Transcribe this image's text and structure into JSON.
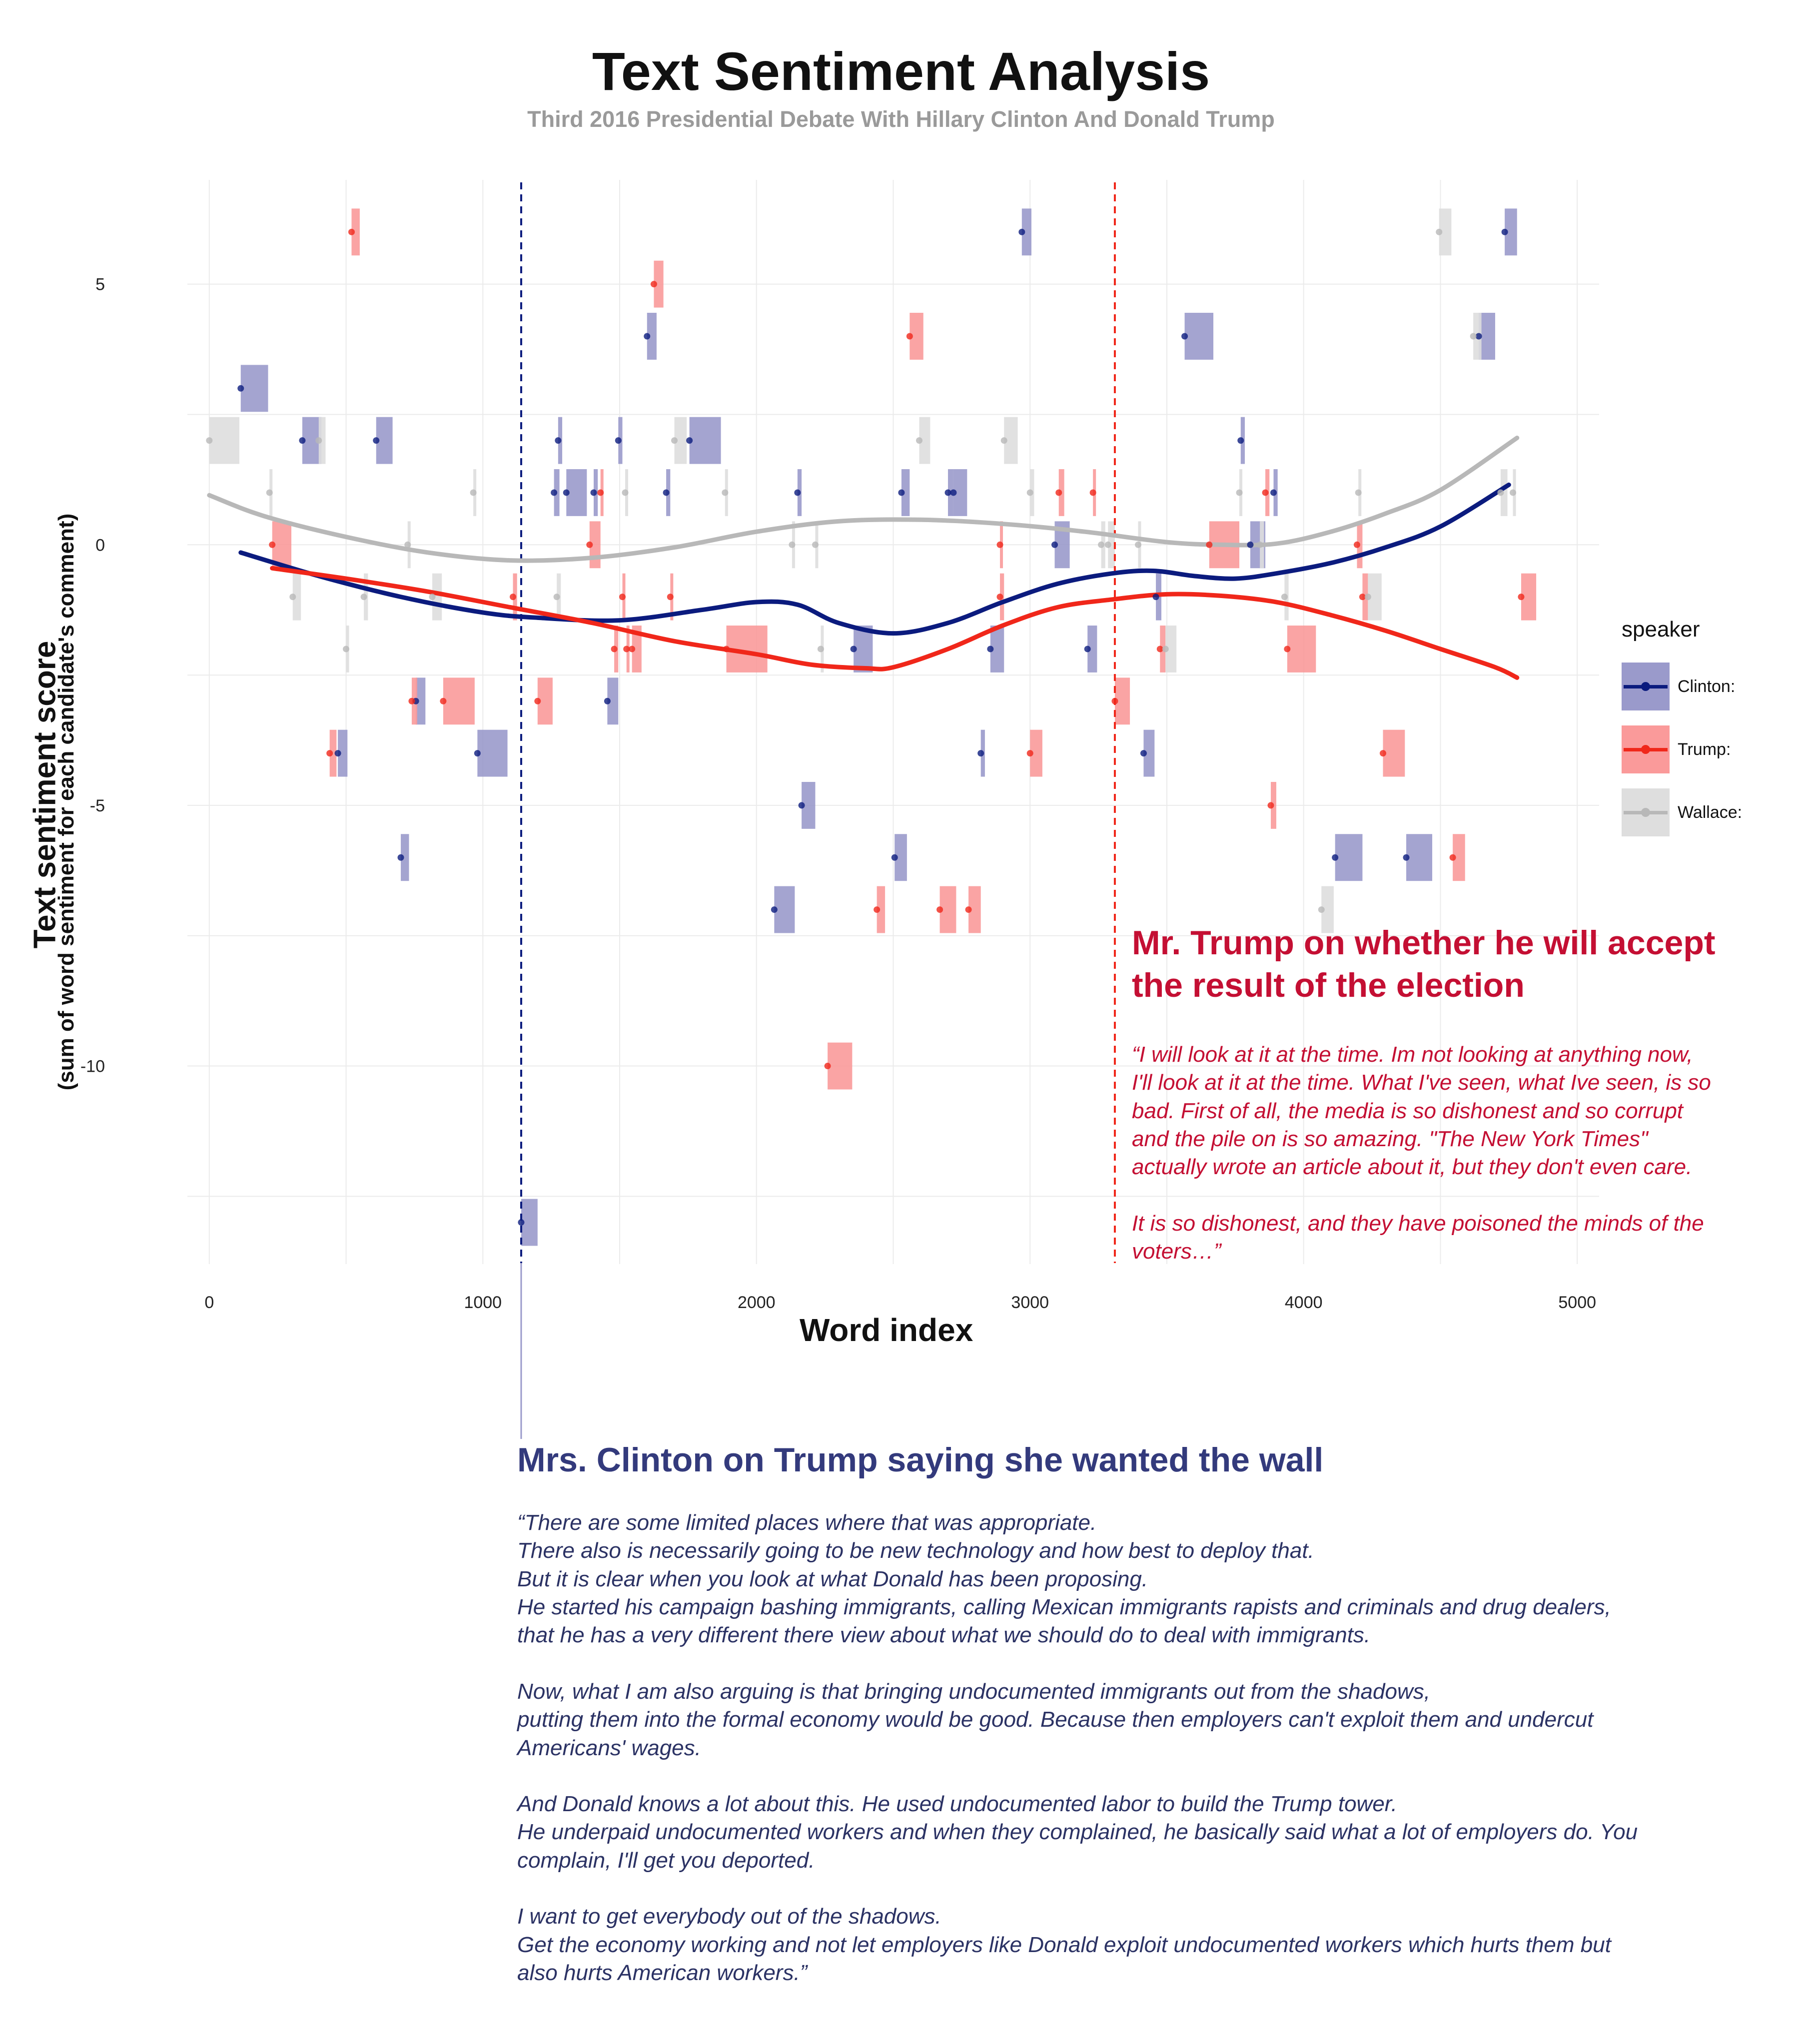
{
  "title": "Text Sentiment Analysis",
  "subtitle": "Third 2016 Presidential Debate With Hillary Clinton And Donald Trump",
  "legend": {
    "title": "speaker",
    "items": [
      {
        "label": "Clinton:",
        "color": "#0b1b7e",
        "fill": "#9a9acb"
      },
      {
        "label": "Trump:",
        "color": "#f0271a",
        "fill": "#fa9a9a"
      },
      {
        "label": "Wallace:",
        "color": "#b8b8b8",
        "fill": "#dedede"
      }
    ]
  },
  "annotations": [
    {
      "title": "Mr. Trump on whether he will accept the result of the election",
      "quote": "“I will look at it at the time. Im not looking at anything now,\nI'll look at it at the time. What I've seen, what Ive seen, is so\nbad. First of all, the media is so dishonest and so corrupt\nand the pile on is so amazing. \"The New York Times\"\nactually wrote an article about it, but they don't even care.\n\nIt is so dishonest, and they have poisoned the minds of the\nvoters…”"
    },
    {
      "title": "Mrs. Clinton on Trump saying she wanted the wall",
      "quote": "“There are some limited places where that was appropriate.\nThere also is necessarily going to be new technology and how best to deploy that.\nBut it is clear when you look at what Donald has been proposing.\nHe started his campaign bashing immigrants, calling Mexican immigrants rapists and criminals and drug dealers,\nthat he has a very different there view about what we should do to deal with immigrants.\n\nNow, what I am also arguing is that bringing undocumented immigrants out from the shadows,\nputting them into the formal economy would be good. Because then employers can't exploit them and undercut\nAmericans' wages.\n\nAnd Donald knows a lot about this. He used undocumented labor to build the Trump tower.\nHe underpaid undocumented workers and when they complained, he basically said what a lot of employers do. You\ncomplain, I'll get you deported.\n\nI want to get everybody out of the shadows.\nGet the economy working and not let employers like Donald exploit undocumented workers which hurts them but\nalso hurts American workers.”"
    }
  ],
  "chart_data": {
    "type": "scatter",
    "title": "Text Sentiment Analysis",
    "subtitle": "Third 2016 Presidential Debate With Hillary Clinton And Donald Trump",
    "xlabel": "Word index",
    "ylabel": "Text sentiment score",
    "ylabel_sub": "(sum of word sentiment for each candidate's comment)",
    "xlim": [
      -80,
      5080
    ],
    "ylim": [
      -13.8,
      7.0
    ],
    "x_ticks": [
      0,
      1000,
      2000,
      3000,
      4000,
      5000
    ],
    "x_tick_labels": [
      "0",
      "1000",
      "2000",
      "3000",
      "4000",
      "5000"
    ],
    "y_ticks": [
      5,
      0,
      -5,
      -10
    ],
    "y_tick_labels": [
      "5",
      "0",
      "-5",
      "-10"
    ],
    "grid": true,
    "legend_position": "right",
    "reference_lines": [
      {
        "speaker": "Clinton:",
        "x": 1140
      },
      {
        "speaker": "Trump:",
        "x": 3310
      }
    ],
    "series": [
      {
        "name": "Clinton:",
        "color": "#0b1b7e",
        "fill": "#9a9acb",
        "comments": [
          {
            "x": 115,
            "x_end": 215,
            "y": 3
          },
          {
            "x": 340,
            "x_end": 410,
            "y": 2
          },
          {
            "x": 610,
            "x_end": 670,
            "y": 2
          },
          {
            "x": 470,
            "x_end": 505,
            "y": -4
          },
          {
            "x": 700,
            "x_end": 730,
            "y": -6
          },
          {
            "x": 755,
            "x_end": 790,
            "y": -3
          },
          {
            "x": 980,
            "x_end": 1090,
            "y": -4
          },
          {
            "x": 1140,
            "x_end": 1200,
            "y": -13
          },
          {
            "x": 1275,
            "x_end": 1290,
            "y": 2
          },
          {
            "x": 1260,
            "x_end": 1280,
            "y": 1
          },
          {
            "x": 1305,
            "x_end": 1380,
            "y": 1
          },
          {
            "x": 1405,
            "x_end": 1420,
            "y": 1
          },
          {
            "x": 1455,
            "x_end": 1495,
            "y": -3
          },
          {
            "x": 1495,
            "x_end": 1510,
            "y": 2
          },
          {
            "x": 1600,
            "x_end": 1635,
            "y": 4
          },
          {
            "x": 1670,
            "x_end": 1685,
            "y": 1
          },
          {
            "x": 1755,
            "x_end": 1870,
            "y": 2
          },
          {
            "x": 2065,
            "x_end": 2140,
            "y": -7
          },
          {
            "x": 2150,
            "x_end": 2165,
            "y": 1
          },
          {
            "x": 2165,
            "x_end": 2215,
            "y": -5
          },
          {
            "x": 2355,
            "x_end": 2425,
            "y": -2
          },
          {
            "x": 2505,
            "x_end": 2550,
            "y": -6
          },
          {
            "x": 2530,
            "x_end": 2560,
            "y": 1
          },
          {
            "x": 2700,
            "x_end": 2720,
            "y": 1
          },
          {
            "x": 2720,
            "x_end": 2770,
            "y": 1
          },
          {
            "x": 2820,
            "x_end": 2835,
            "y": -4
          },
          {
            "x": 2855,
            "x_end": 2905,
            "y": -2
          },
          {
            "x": 2970,
            "x_end": 3005,
            "y": 6
          },
          {
            "x": 3090,
            "x_end": 3145,
            "y": 0
          },
          {
            "x": 3210,
            "x_end": 3245,
            "y": -2
          },
          {
            "x": 3415,
            "x_end": 3455,
            "y": -4
          },
          {
            "x": 3460,
            "x_end": 3480,
            "y": -1
          },
          {
            "x": 3565,
            "x_end": 3670,
            "y": 4
          },
          {
            "x": 3770,
            "x_end": 3785,
            "y": 2
          },
          {
            "x": 3805,
            "x_end": 3860,
            "y": 0
          },
          {
            "x": 3890,
            "x_end": 3905,
            "y": 1
          },
          {
            "x": 4115,
            "x_end": 4215,
            "y": -6
          },
          {
            "x": 4375,
            "x_end": 4470,
            "y": -6
          },
          {
            "x": 4640,
            "x_end": 4700,
            "y": 4
          },
          {
            "x": 4735,
            "x_end": 4780,
            "y": 6
          }
        ],
        "trend": [
          [
            115,
            -0.15
          ],
          [
            400,
            -0.6
          ],
          [
            700,
            -1.0
          ],
          [
            1000,
            -1.3
          ],
          [
            1200,
            -1.4
          ],
          [
            1500,
            -1.45
          ],
          [
            1800,
            -1.25
          ],
          [
            2000,
            -1.1
          ],
          [
            2150,
            -1.15
          ],
          [
            2300,
            -1.5
          ],
          [
            2500,
            -1.7
          ],
          [
            2700,
            -1.5
          ],
          [
            2900,
            -1.1
          ],
          [
            3100,
            -0.75
          ],
          [
            3300,
            -0.55
          ],
          [
            3450,
            -0.5
          ],
          [
            3600,
            -0.6
          ],
          [
            3750,
            -0.65
          ],
          [
            3900,
            -0.55
          ],
          [
            4100,
            -0.35
          ],
          [
            4300,
            -0.05
          ],
          [
            4500,
            0.35
          ],
          [
            4750,
            1.15
          ]
        ]
      },
      {
        "name": "Trump:",
        "color": "#f0271a",
        "fill": "#fa9a9a",
        "comments": [
          {
            "x": 230,
            "x_end": 300,
            "y": 0
          },
          {
            "x": 520,
            "x_end": 550,
            "y": 6
          },
          {
            "x": 440,
            "x_end": 465,
            "y": -4
          },
          {
            "x": 740,
            "x_end": 760,
            "y": -3
          },
          {
            "x": 855,
            "x_end": 970,
            "y": -3
          },
          {
            "x": 1110,
            "x_end": 1125,
            "y": -1
          },
          {
            "x": 1200,
            "x_end": 1255,
            "y": -3
          },
          {
            "x": 1390,
            "x_end": 1430,
            "y": 0
          },
          {
            "x": 1430,
            "x_end": 1440,
            "y": 1
          },
          {
            "x": 1480,
            "x_end": 1495,
            "y": -2
          },
          {
            "x": 1510,
            "x_end": 1520,
            "y": -1
          },
          {
            "x": 1525,
            "x_end": 1535,
            "y": -2
          },
          {
            "x": 1545,
            "x_end": 1580,
            "y": -2
          },
          {
            "x": 1625,
            "x_end": 1660,
            "y": 5
          },
          {
            "x": 1685,
            "x_end": 1695,
            "y": -1
          },
          {
            "x": 1890,
            "x_end": 2040,
            "y": -2
          },
          {
            "x": 2260,
            "x_end": 2350,
            "y": -10
          },
          {
            "x": 2440,
            "x_end": 2470,
            "y": -7
          },
          {
            "x": 2560,
            "x_end": 2610,
            "y": 4
          },
          {
            "x": 2670,
            "x_end": 2730,
            "y": -7
          },
          {
            "x": 2775,
            "x_end": 2820,
            "y": -7
          },
          {
            "x": 2890,
            "x_end": 2905,
            "y": -1
          },
          {
            "x": 2890,
            "x_end": 2900,
            "y": 0
          },
          {
            "x": 3000,
            "x_end": 3045,
            "y": -4
          },
          {
            "x": 3105,
            "x_end": 3125,
            "y": 1
          },
          {
            "x": 3230,
            "x_end": 3240,
            "y": 1
          },
          {
            "x": 3310,
            "x_end": 3365,
            "y": -3
          },
          {
            "x": 3475,
            "x_end": 3495,
            "y": -2
          },
          {
            "x": 3655,
            "x_end": 3765,
            "y": 0
          },
          {
            "x": 3860,
            "x_end": 3875,
            "y": 1
          },
          {
            "x": 3880,
            "x_end": 3900,
            "y": -5
          },
          {
            "x": 3940,
            "x_end": 4045,
            "y": -2
          },
          {
            "x": 4195,
            "x_end": 4215,
            "y": 0
          },
          {
            "x": 4215,
            "x_end": 4235,
            "y": -1
          },
          {
            "x": 4290,
            "x_end": 4370,
            "y": -4
          },
          {
            "x": 4545,
            "x_end": 4590,
            "y": -6
          },
          {
            "x": 4795,
            "x_end": 4850,
            "y": -1
          }
        ],
        "trend": [
          [
            230,
            -0.45
          ],
          [
            500,
            -0.65
          ],
          [
            800,
            -0.9
          ],
          [
            1100,
            -1.2
          ],
          [
            1400,
            -1.5
          ],
          [
            1700,
            -1.85
          ],
          [
            2000,
            -2.1
          ],
          [
            2200,
            -2.3
          ],
          [
            2400,
            -2.37
          ],
          [
            2500,
            -2.35
          ],
          [
            2700,
            -2.0
          ],
          [
            2900,
            -1.55
          ],
          [
            3100,
            -1.2
          ],
          [
            3300,
            -1.05
          ],
          [
            3500,
            -0.95
          ],
          [
            3700,
            -0.98
          ],
          [
            3900,
            -1.1
          ],
          [
            4100,
            -1.35
          ],
          [
            4300,
            -1.65
          ],
          [
            4500,
            -2.0
          ],
          [
            4700,
            -2.35
          ],
          [
            4780,
            -2.55
          ]
        ]
      },
      {
        "name": "Wallace:",
        "color": "#b8b8b8",
        "fill": "#dedede",
        "comments": [
          {
            "x": 0,
            "x_end": 110,
            "y": 2
          },
          {
            "x": 220,
            "x_end": 230,
            "y": 1
          },
          {
            "x": 305,
            "x_end": 335,
            "y": -1
          },
          {
            "x": 400,
            "x_end": 425,
            "y": 2
          },
          {
            "x": 500,
            "x_end": 510,
            "y": -2
          },
          {
            "x": 565,
            "x_end": 580,
            "y": -1
          },
          {
            "x": 725,
            "x_end": 735,
            "y": 0
          },
          {
            "x": 815,
            "x_end": 850,
            "y": -1
          },
          {
            "x": 965,
            "x_end": 975,
            "y": 1
          },
          {
            "x": 1270,
            "x_end": 1285,
            "y": -1
          },
          {
            "x": 1520,
            "x_end": 1530,
            "y": 1
          },
          {
            "x": 1700,
            "x_end": 1745,
            "y": 2
          },
          {
            "x": 1885,
            "x_end": 1895,
            "y": 1
          },
          {
            "x": 2130,
            "x_end": 2140,
            "y": 0
          },
          {
            "x": 2215,
            "x_end": 2225,
            "y": 0
          },
          {
            "x": 2235,
            "x_end": 2245,
            "y": -2
          },
          {
            "x": 2595,
            "x_end": 2635,
            "y": 2
          },
          {
            "x": 2905,
            "x_end": 2955,
            "y": 2
          },
          {
            "x": 3000,
            "x_end": 3015,
            "y": 1
          },
          {
            "x": 3260,
            "x_end": 3275,
            "y": 0
          },
          {
            "x": 3285,
            "x_end": 3310,
            "y": 0
          },
          {
            "x": 3395,
            "x_end": 3405,
            "y": 0
          },
          {
            "x": 3495,
            "x_end": 3535,
            "y": -2
          },
          {
            "x": 3765,
            "x_end": 3775,
            "y": 1
          },
          {
            "x": 3840,
            "x_end": 3855,
            "y": 0
          },
          {
            "x": 3930,
            "x_end": 3945,
            "y": -1
          },
          {
            "x": 4065,
            "x_end": 4110,
            "y": -7
          },
          {
            "x": 4200,
            "x_end": 4210,
            "y": 1
          },
          {
            "x": 4235,
            "x_end": 4285,
            "y": -1
          },
          {
            "x": 4495,
            "x_end": 4540,
            "y": 6
          },
          {
            "x": 4620,
            "x_end": 4650,
            "y": 4
          },
          {
            "x": 4720,
            "x_end": 4745,
            "y": 1
          },
          {
            "x": 4765,
            "x_end": 4775,
            "y": 1
          }
        ],
        "trend": [
          [
            0,
            0.95
          ],
          [
            200,
            0.55
          ],
          [
            500,
            0.15
          ],
          [
            800,
            -0.15
          ],
          [
            1100,
            -0.3
          ],
          [
            1400,
            -0.25
          ],
          [
            1700,
            -0.05
          ],
          [
            2000,
            0.25
          ],
          [
            2300,
            0.45
          ],
          [
            2600,
            0.48
          ],
          [
            2900,
            0.4
          ],
          [
            3200,
            0.25
          ],
          [
            3500,
            0.05
          ],
          [
            3700,
            0.0
          ],
          [
            3900,
            0.02
          ],
          [
            4100,
            0.25
          ],
          [
            4300,
            0.6
          ],
          [
            4500,
            1.05
          ],
          [
            4780,
            2.05
          ]
        ]
      }
    ]
  }
}
